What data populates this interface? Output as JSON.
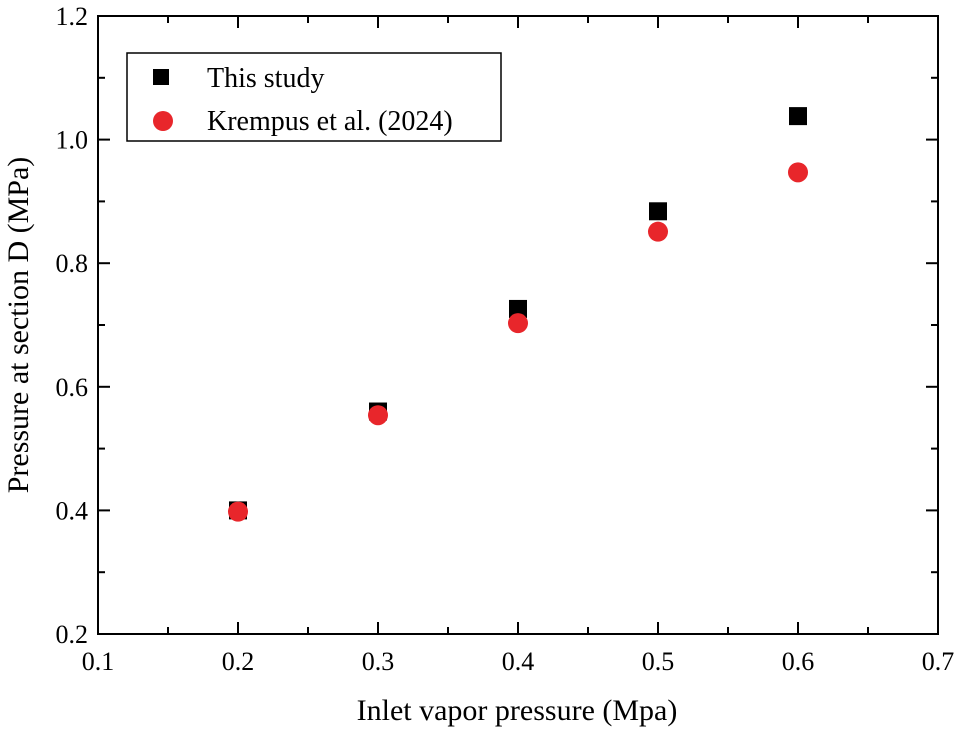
{
  "chart_data": {
    "type": "scatter",
    "title": "",
    "xlabel": "Inlet vapor pressure (Mpa)",
    "ylabel": "Pressure at section D (MPa)",
    "xlim": [
      0.1,
      0.7
    ],
    "ylim": [
      0.2,
      1.2
    ],
    "xticks": [
      "0.1",
      "0.2",
      "0.3",
      "0.4",
      "0.5",
      "0.6",
      "0.7"
    ],
    "yticks": [
      "0.2",
      "0.4",
      "0.6",
      "0.8",
      "1.0",
      "1.2"
    ],
    "grid": false,
    "legend_position": "top-left",
    "series": [
      {
        "name": "This study",
        "marker": "square",
        "color": "#000000",
        "x": [
          0.2,
          0.3,
          0.4,
          0.5,
          0.6
        ],
        "y": [
          0.4,
          0.56,
          0.726,
          0.884,
          1.038
        ]
      },
      {
        "name": "Krempus et al. (2024)",
        "marker": "circle",
        "color": "#e8262b",
        "x": [
          0.2,
          0.3,
          0.4,
          0.5,
          0.6
        ],
        "y": [
          0.398,
          0.554,
          0.703,
          0.851,
          0.947
        ]
      }
    ]
  }
}
